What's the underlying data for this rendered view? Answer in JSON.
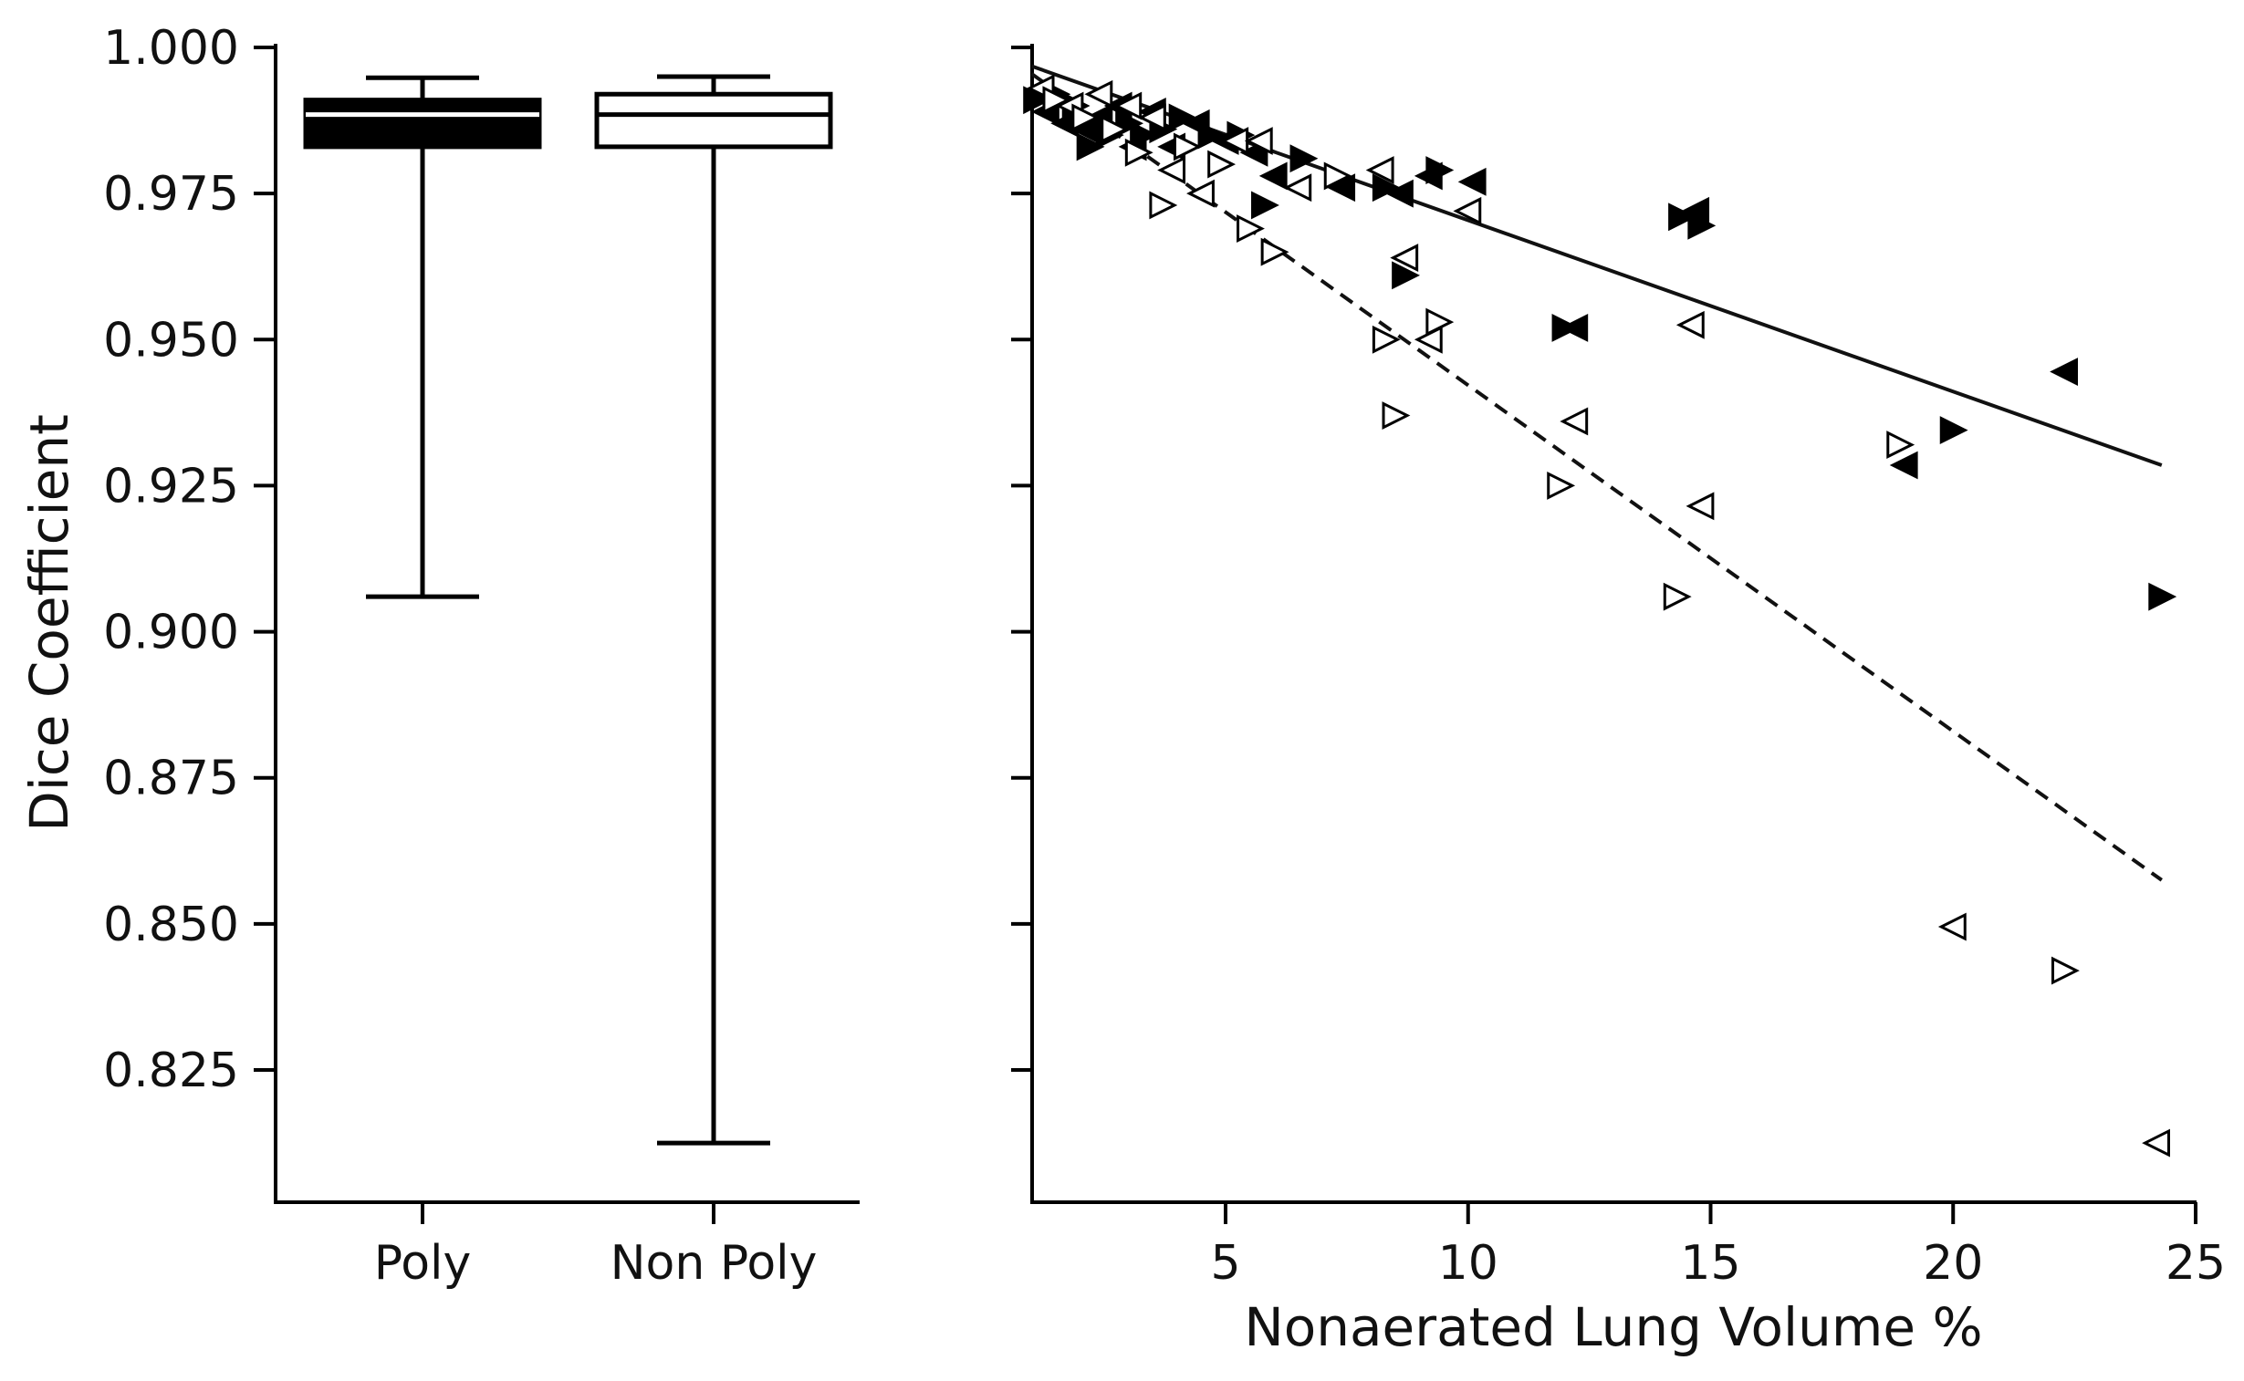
{
  "chart_data": [
    {
      "type": "box",
      "ylabel": "Dice Coefficient",
      "ylim": [
        0.8,
        1.0
      ],
      "yticks": [
        "0.825",
        "0.850",
        "0.875",
        "0.900",
        "0.925",
        "0.950",
        "0.975",
        "1.000"
      ],
      "categories": [
        "Poly",
        "Non Poly"
      ],
      "boxes": [
        {
          "name": "Poly",
          "whisker_low": 0.906,
          "q1": 0.983,
          "median": 0.9885,
          "q3": 0.991,
          "whisker_high": 0.9948,
          "fill": "#000000"
        },
        {
          "name": "Non Poly",
          "whisker_low": 0.8125,
          "q1": 0.983,
          "median": 0.9885,
          "q3": 0.992,
          "whisker_high": 0.995,
          "fill": "#ffffff"
        }
      ]
    },
    {
      "type": "scatter",
      "xlabel": "Nonaerated Lung Volume %",
      "xlim": [
        1,
        25
      ],
      "ylim": [
        0.8,
        1.0
      ],
      "xticks": [
        "5",
        "10",
        "15",
        "20",
        "25"
      ],
      "series": [
        {
          "name": "Poly",
          "style": "filled",
          "fit_line": {
            "x": [
              1,
              24.3
            ],
            "y": [
              0.9968,
              0.9285
            ],
            "dash": "solid"
          },
          "points": [
            {
              "x": 1.1,
              "y": 0.991,
              "m": "right"
            },
            {
              "x": 1.3,
              "y": 0.989,
              "m": "left"
            },
            {
              "x": 1.5,
              "y": 0.992,
              "m": "right"
            },
            {
              "x": 1.7,
              "y": 0.987,
              "m": "left"
            },
            {
              "x": 1.9,
              "y": 0.99,
              "m": "right"
            },
            {
              "x": 2.1,
              "y": 0.986,
              "m": "left"
            },
            {
              "x": 2.2,
              "y": 0.983,
              "m": "right"
            },
            {
              "x": 2.4,
              "y": 0.988,
              "m": "left"
            },
            {
              "x": 2.6,
              "y": 0.985,
              "m": "right"
            },
            {
              "x": 2.8,
              "y": 0.99,
              "m": "left"
            },
            {
              "x": 3.0,
              "y": 0.987,
              "m": "right"
            },
            {
              "x": 3.1,
              "y": 0.983,
              "m": "left"
            },
            {
              "x": 3.3,
              "y": 0.985,
              "m": "right"
            },
            {
              "x": 3.5,
              "y": 0.989,
              "m": "left"
            },
            {
              "x": 3.7,
              "y": 0.986,
              "m": "right"
            },
            {
              "x": 3.9,
              "y": 0.983,
              "m": "left"
            },
            {
              "x": 4.1,
              "y": 0.988,
              "m": "right"
            },
            {
              "x": 4.4,
              "y": 0.987,
              "m": "left"
            },
            {
              "x": 4.7,
              "y": 0.985,
              "m": "right"
            },
            {
              "x": 5.0,
              "y": 0.984,
              "m": "left"
            },
            {
              "x": 5.3,
              "y": 0.985,
              "m": "right"
            },
            {
              "x": 5.6,
              "y": 0.982,
              "m": "left"
            },
            {
              "x": 5.8,
              "y": 0.973,
              "m": "right"
            },
            {
              "x": 6.0,
              "y": 0.978,
              "m": "left"
            },
            {
              "x": 6.6,
              "y": 0.981,
              "m": "right"
            },
            {
              "x": 7.4,
              "y": 0.976,
              "m": "left"
            },
            {
              "x": 8.3,
              "y": 0.976,
              "m": "right"
            },
            {
              "x": 8.6,
              "y": 0.975,
              "m": "left"
            },
            {
              "x": 8.7,
              "y": 0.961,
              "m": "right"
            },
            {
              "x": 9.2,
              "y": 0.978,
              "m": "left"
            },
            {
              "x": 9.4,
              "y": 0.979,
              "m": "right"
            },
            {
              "x": 10.1,
              "y": 0.977,
              "m": "left"
            },
            {
              "x": 12.0,
              "y": 0.952,
              "m": "right"
            },
            {
              "x": 12.2,
              "y": 0.952,
              "m": "left"
            },
            {
              "x": 14.4,
              "y": 0.971,
              "m": "right"
            },
            {
              "x": 14.7,
              "y": 0.972,
              "m": "left"
            },
            {
              "x": 14.8,
              "y": 0.9695,
              "m": "right"
            },
            {
              "x": 19.0,
              "y": 0.9285,
              "m": "left"
            },
            {
              "x": 20.0,
              "y": 0.9345,
              "m": "right"
            },
            {
              "x": 22.3,
              "y": 0.9445,
              "m": "left"
            },
            {
              "x": 24.3,
              "y": 0.906,
              "m": "right"
            }
          ]
        },
        {
          "name": "Non Poly",
          "style": "open",
          "fit_line": {
            "x": [
              1,
              24.3
            ],
            "y": [
              0.9955,
              0.8575
            ],
            "dash": "dashed"
          },
          "points": [
            {
              "x": 1.2,
              "y": 0.993,
              "m": "left"
            },
            {
              "x": 1.5,
              "y": 0.991,
              "m": "right"
            },
            {
              "x": 1.8,
              "y": 0.99,
              "m": "left"
            },
            {
              "x": 2.1,
              "y": 0.988,
              "m": "right"
            },
            {
              "x": 2.4,
              "y": 0.992,
              "m": "left"
            },
            {
              "x": 2.7,
              "y": 0.986,
              "m": "right"
            },
            {
              "x": 3.0,
              "y": 0.99,
              "m": "left"
            },
            {
              "x": 3.2,
              "y": 0.982,
              "m": "right"
            },
            {
              "x": 3.5,
              "y": 0.988,
              "m": "left"
            },
            {
              "x": 3.7,
              "y": 0.973,
              "m": "right"
            },
            {
              "x": 3.9,
              "y": 0.979,
              "m": "left"
            },
            {
              "x": 4.2,
              "y": 0.983,
              "m": "right"
            },
            {
              "x": 4.5,
              "y": 0.975,
              "m": "left"
            },
            {
              "x": 4.9,
              "y": 0.98,
              "m": "right"
            },
            {
              "x": 5.2,
              "y": 0.984,
              "m": "left"
            },
            {
              "x": 5.5,
              "y": 0.969,
              "m": "right"
            },
            {
              "x": 5.7,
              "y": 0.984,
              "m": "left"
            },
            {
              "x": 6.0,
              "y": 0.965,
              "m": "right"
            },
            {
              "x": 6.5,
              "y": 0.976,
              "m": "left"
            },
            {
              "x": 7.3,
              "y": 0.978,
              "m": "right"
            },
            {
              "x": 8.2,
              "y": 0.979,
              "m": "left"
            },
            {
              "x": 8.3,
              "y": 0.95,
              "m": "right"
            },
            {
              "x": 8.5,
              "y": 0.937,
              "m": "right"
            },
            {
              "x": 8.7,
              "y": 0.964,
              "m": "left"
            },
            {
              "x": 9.2,
              "y": 0.95,
              "m": "left"
            },
            {
              "x": 9.4,
              "y": 0.953,
              "m": "right"
            },
            {
              "x": 10.0,
              "y": 0.972,
              "m": "left"
            },
            {
              "x": 11.9,
              "y": 0.925,
              "m": "right"
            },
            {
              "x": 12.2,
              "y": 0.936,
              "m": "left"
            },
            {
              "x": 14.3,
              "y": 0.906,
              "m": "right"
            },
            {
              "x": 14.6,
              "y": 0.9525,
              "m": "left"
            },
            {
              "x": 14.8,
              "y": 0.9215,
              "m": "left"
            },
            {
              "x": 18.9,
              "y": 0.932,
              "m": "right"
            },
            {
              "x": 20.0,
              "y": 0.8495,
              "m": "left"
            },
            {
              "x": 22.3,
              "y": 0.842,
              "m": "right"
            },
            {
              "x": 24.2,
              "y": 0.8125,
              "m": "left"
            }
          ]
        }
      ]
    }
  ]
}
